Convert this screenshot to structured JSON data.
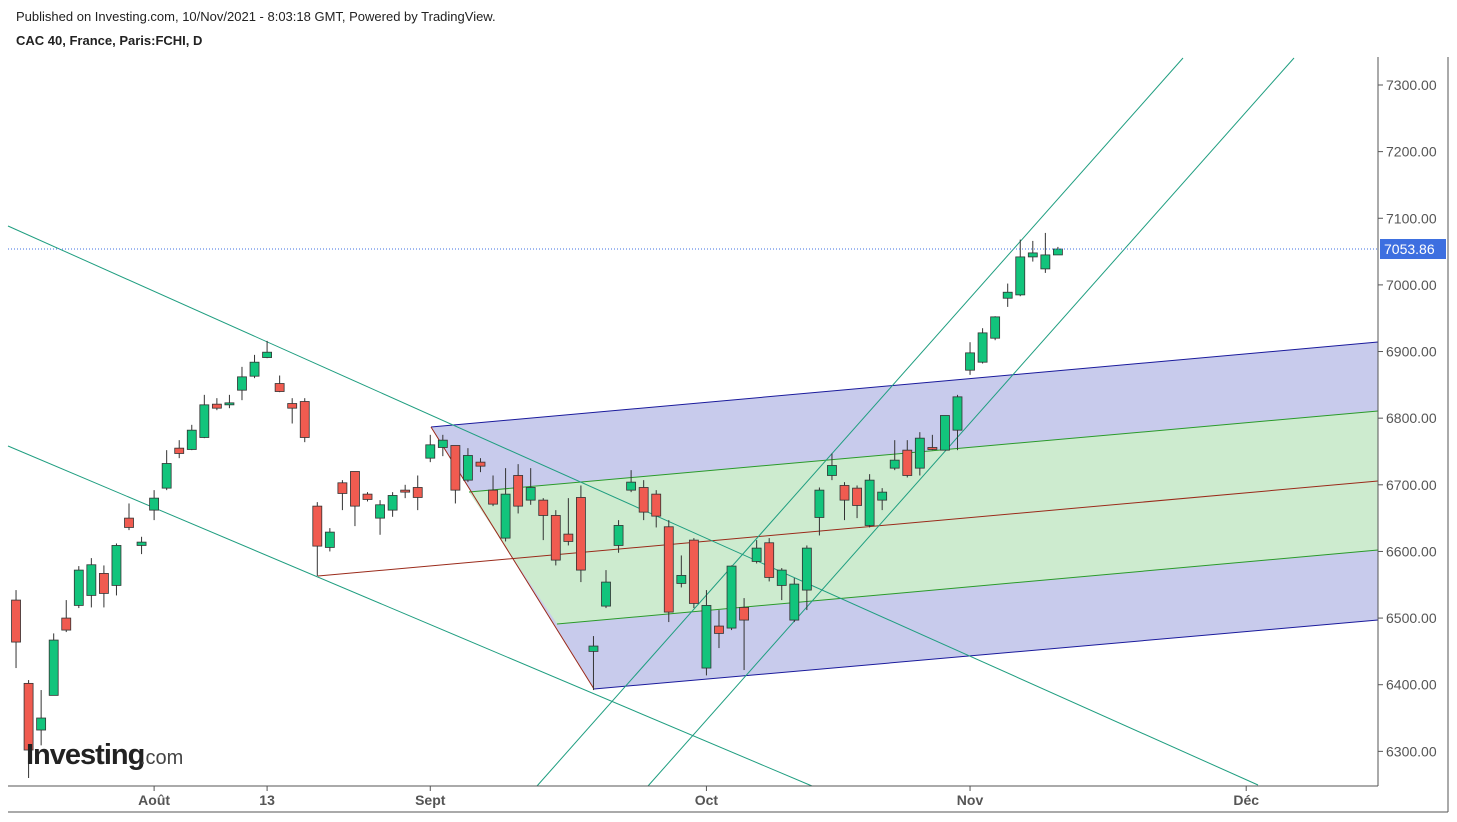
{
  "chart_data": {
    "type": "candlestick",
    "subtitle": "Published on Investing.com, 10/Nov/2021 - 8:03:18 GMT, Powered by TradingView.",
    "title": "CAC 40, France, Paris:FCHI, D",
    "x": [
      0,
      1,
      2,
      3,
      4,
      5,
      6,
      7,
      8,
      9,
      10,
      11,
      12,
      13,
      14,
      15,
      16,
      17,
      18,
      19,
      20,
      21,
      22,
      23,
      24,
      25,
      26,
      27,
      28,
      29,
      30,
      31,
      32,
      33,
      34,
      35,
      36,
      37,
      38,
      39,
      40,
      41,
      42,
      43,
      44,
      45,
      46,
      47,
      48,
      49,
      50,
      51,
      52,
      53,
      54,
      55,
      56,
      57,
      58,
      59,
      60,
      61,
      62,
      63,
      64,
      65,
      66,
      67,
      68,
      69,
      70,
      71,
      72,
      73,
      74,
      75,
      76,
      77,
      78,
      79,
      80,
      81,
      82,
      83
    ],
    "open": [
      6527,
      6402,
      6332,
      6384,
      6500,
      6519,
      6534,
      6567,
      6549,
      6650,
      6609,
      6662,
      6695,
      6755,
      6753,
      6771,
      6821,
      6820,
      6842,
      6863,
      6891,
      6852,
      6822,
      6825,
      6668,
      6606,
      6703,
      6720,
      6686,
      6650,
      6662,
      6692,
      6696,
      6740,
      6756,
      6759,
      6707,
      6734,
      6692,
      6620,
      6714,
      6677,
      6677,
      6654,
      6626,
      6681,
      6450,
      6518,
      6609,
      6692,
      6696,
      6686,
      6637,
      6552,
      6617,
      6425,
      6488,
      6485,
      6516,
      6585,
      6613,
      6549,
      6497,
      6542,
      6651,
      6714,
      6699,
      6695,
      6639,
      6677,
      6725,
      6752,
      6725,
      6756,
      6752,
      6782,
      6872,
      6884,
      6920,
      6980,
      6985,
      7042,
      7024,
      7045
    ],
    "high": [
      6542,
      6407,
      6392,
      6477,
      6527,
      6578,
      6590,
      6579,
      6612,
      6672,
      6622,
      6692,
      6752,
      6767,
      6790,
      6835,
      6830,
      6835,
      6877,
      6895,
      6916,
      6864,
      6830,
      6830,
      6674,
      6635,
      6707,
      6720,
      6689,
      6677,
      6689,
      6700,
      6714,
      6775,
      6775,
      6759,
      6755,
      6740,
      6714,
      6725,
      6731,
      6725,
      6680,
      6662,
      6680,
      6699,
      6473,
      6572,
      6647,
      6722,
      6707,
      6692,
      6647,
      6594,
      6620,
      6542,
      6512,
      6579,
      6530,
      6617,
      6620,
      6575,
      6560,
      6609,
      6696,
      6747,
      6704,
      6699,
      6716,
      6695,
      6767,
      6767,
      6779,
      6775,
      6804,
      6835,
      6914,
      6935,
      6953,
      7002,
      7068,
      7066,
      7078,
      7057
    ],
    "low": [
      6425,
      6260,
      6309,
      6384,
      6479,
      6515,
      6516,
      6516,
      6534,
      6632,
      6596,
      6647,
      6692,
      6740,
      6752,
      6770,
      6812,
      6815,
      6827,
      6860,
      6890,
      6839,
      6792,
      6764,
      6563,
      6600,
      6662,
      6638,
      6675,
      6625,
      6652,
      6680,
      6662,
      6734,
      6743,
      6672,
      6704,
      6719,
      6668,
      6615,
      6657,
      6670,
      6617,
      6579,
      6609,
      6554,
      6392,
      6515,
      6598,
      6689,
      6647,
      6636,
      6494,
      6546,
      6515,
      6414,
      6455,
      6482,
      6422,
      6582,
      6555,
      6527,
      6494,
      6512,
      6624,
      6707,
      6647,
      6650,
      6636,
      6662,
      6722,
      6711,
      6714,
      6752,
      6752,
      6752,
      6865,
      6882,
      6917,
      6967,
      6983,
      7035,
      7018,
      7045
    ],
    "close": [
      6464,
      6302,
      6350,
      6467,
      6482,
      6572,
      6580,
      6537,
      6609,
      6636,
      6614,
      6680,
      6732,
      6747,
      6782,
      6820,
      6815,
      6823,
      6862,
      6884,
      6899,
      6840,
      6815,
      6771,
      6608,
      6629,
      6687,
      6668,
      6678,
      6670,
      6684,
      6689,
      6681,
      6760,
      6767,
      6692,
      6744,
      6728,
      6671,
      6686,
      6668,
      6696,
      6654,
      6587,
      6615,
      6572,
      6458,
      6554,
      6639,
      6704,
      6659,
      6653,
      6509,
      6564,
      6522,
      6519,
      6477,
      6578,
      6497,
      6605,
      6561,
      6572,
      6551,
      6605,
      6692,
      6729,
      6677,
      6669,
      6707,
      6689,
      6737,
      6714,
      6770,
      6753,
      6804,
      6832,
      6898,
      6928,
      6952,
      6989,
      7042,
      7048,
      7045,
      7053.86
    ],
    "up_color": "#12c47c",
    "down_color": "#f05b50",
    "xlim": [
      -0.64,
      108.5
    ],
    "xticks": [
      {
        "value": 11,
        "label": "Août"
      },
      {
        "value": 20,
        "label": "13"
      },
      {
        "value": 33,
        "label": "Sept"
      },
      {
        "value": 55,
        "label": "Oct"
      },
      {
        "value": 76,
        "label": "Nov"
      },
      {
        "value": 98,
        "label": "Déc"
      }
    ],
    "ylim": [
      6248,
      7342
    ],
    "yticks": [
      {
        "value": 6300,
        "label": "6300.00"
      },
      {
        "value": 6400,
        "label": "6400.00"
      },
      {
        "value": 6500,
        "label": "6500.00"
      },
      {
        "value": 6600,
        "label": "6600.00"
      },
      {
        "value": 6700,
        "label": "6700.00"
      },
      {
        "value": 6800,
        "label": "6800.00"
      },
      {
        "value": 6900,
        "label": "6900.00"
      },
      {
        "value": 7000,
        "label": "7000.00"
      },
      {
        "value": 7100,
        "label": "7100.00"
      },
      {
        "value": 7200,
        "label": "7200.00"
      },
      {
        "value": 7300,
        "label": "7300.00"
      }
    ],
    "last_price": 7053.86,
    "last_price_color": "#3d6fe0"
  },
  "logo": {
    "name": "Investing",
    "suffix": ".com"
  }
}
